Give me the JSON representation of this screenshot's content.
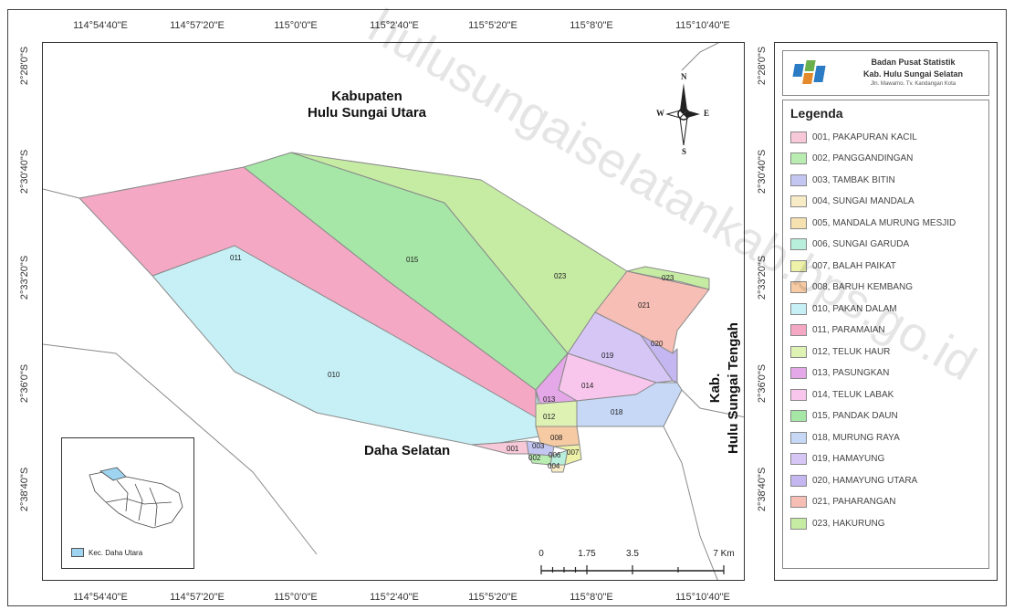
{
  "axis": {
    "longitude_ticks": [
      "114°54'40\"E",
      "114°57'20\"E",
      "115°0'0\"E",
      "115°2'40\"E",
      "115°5'20\"E",
      "115°8'0\"E",
      "115°10'40\"E"
    ],
    "latitude_ticks": [
      "2°28'0\"S",
      "2°30'40\"S",
      "2°33'20\"S",
      "2°36'0\"S",
      "2°38'40\"S"
    ]
  },
  "map": {
    "region_labels": {
      "north": "Kabupaten\nHulu Sungai Utara",
      "east": "Kab.\nHulu Sungai Tengah",
      "south": "Daha Selatan"
    },
    "codes": {
      "c011": "011",
      "c015": "015",
      "c023a": "023",
      "c023b": "023",
      "c010": "010",
      "c021": "021",
      "c019": "019",
      "c020": "020",
      "c014": "014",
      "c013": "013",
      "c012": "012",
      "c018": "018",
      "c008": "008",
      "c001": "001",
      "c003": "003",
      "c002": "002",
      "c006": "006",
      "c007": "007",
      "c004": "004"
    },
    "compass": {
      "n": "N",
      "s": "S",
      "e": "E",
      "w": "W"
    },
    "scale": {
      "labels": [
        "0",
        "1.75",
        "3.5",
        "7 Km"
      ]
    },
    "inset_legend_label": "Kec. Daha Utara",
    "inset_highlight_color": "#9fd4f0"
  },
  "header": {
    "org_line1": "Badan Pusat Statistik",
    "org_line2": "Kab. Hulu Sungai Selatan",
    "org_line3": "Jln. Mawarno. Tv. Kandangan Kota"
  },
  "legend": {
    "title": "Legenda",
    "items": [
      {
        "label": "001, PAKAPURAN KACIL",
        "color": "#f6c8d8"
      },
      {
        "label": "002, PANGGANDINGAN",
        "color": "#b8ecb0"
      },
      {
        "label": "003, TAMBAK BITIN",
        "color": "#c4c6f2"
      },
      {
        "label": "004, SUNGAI MANDALA",
        "color": "#f8ecc6"
      },
      {
        "label": "005, MANDALA MURUNG MESJID",
        "color": "#f6e2b0"
      },
      {
        "label": "006, SUNGAI GARUDA",
        "color": "#b8eedc"
      },
      {
        "label": "007, BALAH PAIKAT",
        "color": "#eef2a8"
      },
      {
        "label": "008, BARUH KEMBANG",
        "color": "#f6caa2"
      },
      {
        "label": "010, PAKAN DALAM",
        "color": "#c6f0f6"
      },
      {
        "label": "011, PARAMAIAN",
        "color": "#f4a8c4"
      },
      {
        "label": "012, TELUK HAUR",
        "color": "#def2b4"
      },
      {
        "label": "013, PASUNGKAN",
        "color": "#e4a8e8"
      },
      {
        "label": "014, TELUK LABAK",
        "color": "#f8c6ec"
      },
      {
        "label": "015, PANDAK DAUN",
        "color": "#a6e6a6"
      },
      {
        "label": "018, MURUNG RAYA",
        "color": "#c6d8f6"
      },
      {
        "label": "019, HAMAYUNG",
        "color": "#d6c6f6"
      },
      {
        "label": "020, HAMAYUNG UTARA",
        "color": "#c4b6f0"
      },
      {
        "label": "021, PAHARANGAN",
        "color": "#f6beb4"
      },
      {
        "label": "023, HAKURUNG",
        "color": "#c6eca4"
      }
    ]
  },
  "watermark": "hulusungaiselatankab.bps.go.id"
}
